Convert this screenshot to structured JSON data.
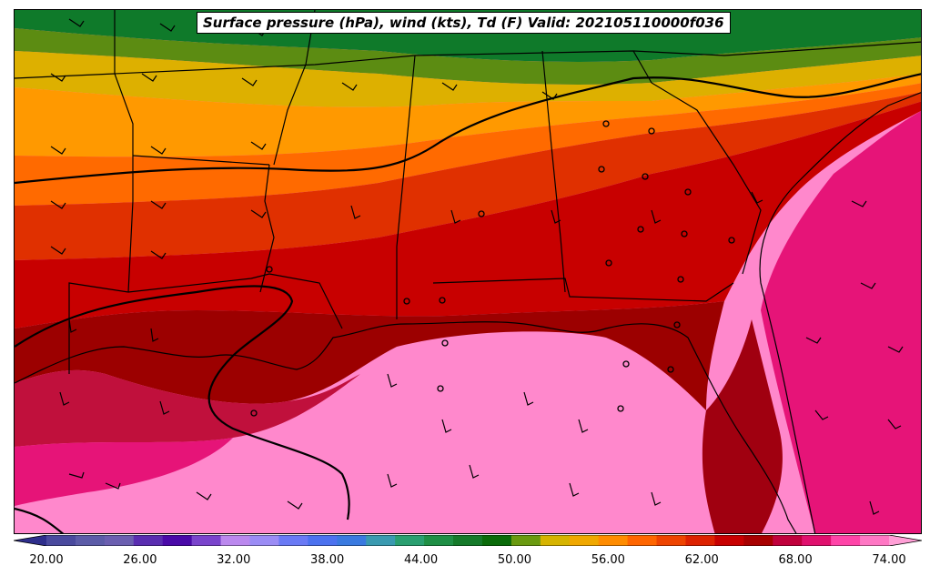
{
  "title": "Surface pressure (hPa), wind (kts), Td (F) Valid: 202105110000f036",
  "colorbar": {
    "min": 18,
    "max": 76,
    "step": 2,
    "tick_labels": [
      "20.00",
      "26.00",
      "32.00",
      "38.00",
      "44.00",
      "50.00",
      "56.00",
      "62.00",
      "68.00",
      "74.00"
    ],
    "tick_values": [
      20,
      26,
      32,
      38,
      44,
      50,
      56,
      62,
      68,
      74
    ],
    "colors": [
      "#2e2e8c",
      "#4a4a9e",
      "#5c5ca8",
      "#6b5fb0",
      "#5a2db0",
      "#4a0aa8",
      "#7a44cc",
      "#bb88ee",
      "#9b8cf5",
      "#6a7af5",
      "#4c72ef",
      "#3a7ae0",
      "#3a9ab0",
      "#2a9f70",
      "#1f8f45",
      "#157a2a",
      "#0a6b0a",
      "#6a9a10",
      "#d6b400",
      "#f0a800",
      "#ff8c00",
      "#ff6600",
      "#ee4400",
      "#dd2200",
      "#c80000",
      "#a80000",
      "#c0003c",
      "#e0106e",
      "#ff44a8",
      "#ff77c4",
      "#ff9fd6"
    ]
  }
}
